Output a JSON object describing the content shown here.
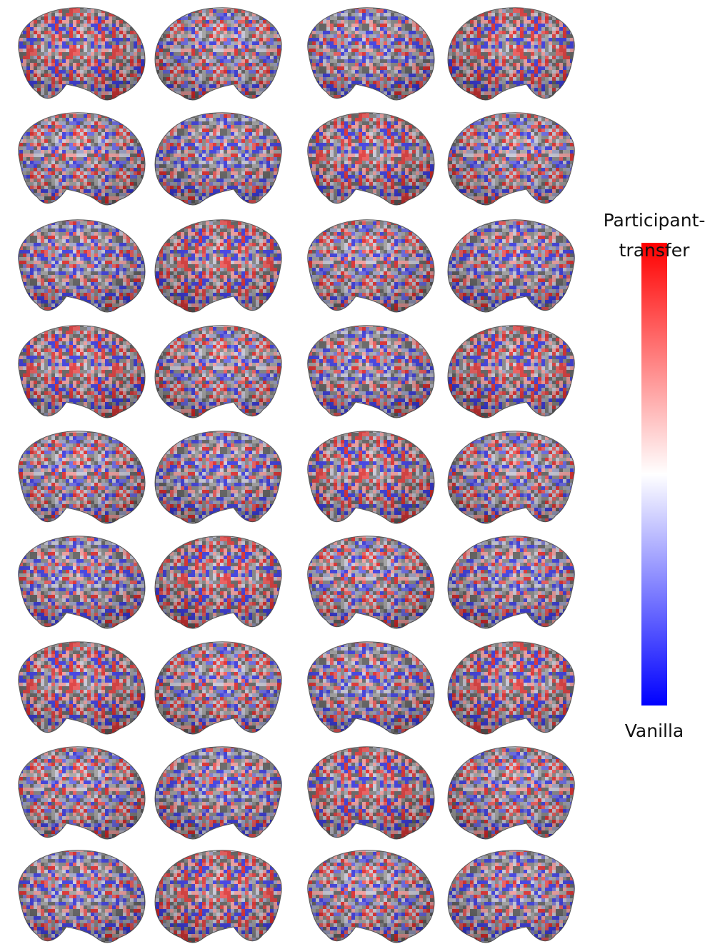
{
  "legend": {
    "top_label_lines": [
      "Participant-",
      "transfer"
    ],
    "bottom_label": "Vanilla"
  }
}
